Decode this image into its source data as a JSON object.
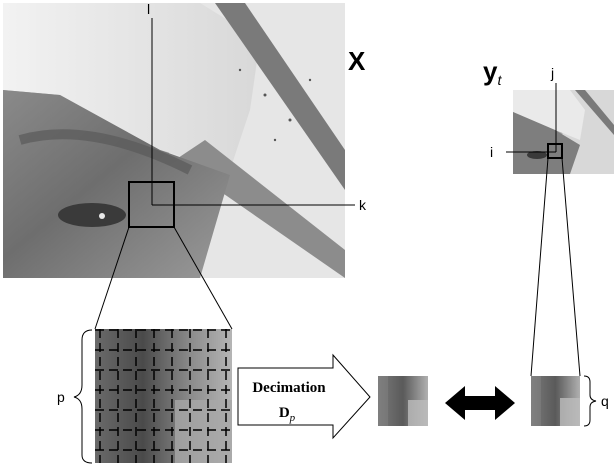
{
  "labels": {
    "X": "X",
    "y": "y",
    "y_sub": "t",
    "l": "l",
    "k": "k",
    "j": "j",
    "i": "i",
    "p": "p",
    "q": "q",
    "decimation_word": "Decimation",
    "decimation_D": "D",
    "decimation_sub": "p"
  }
}
